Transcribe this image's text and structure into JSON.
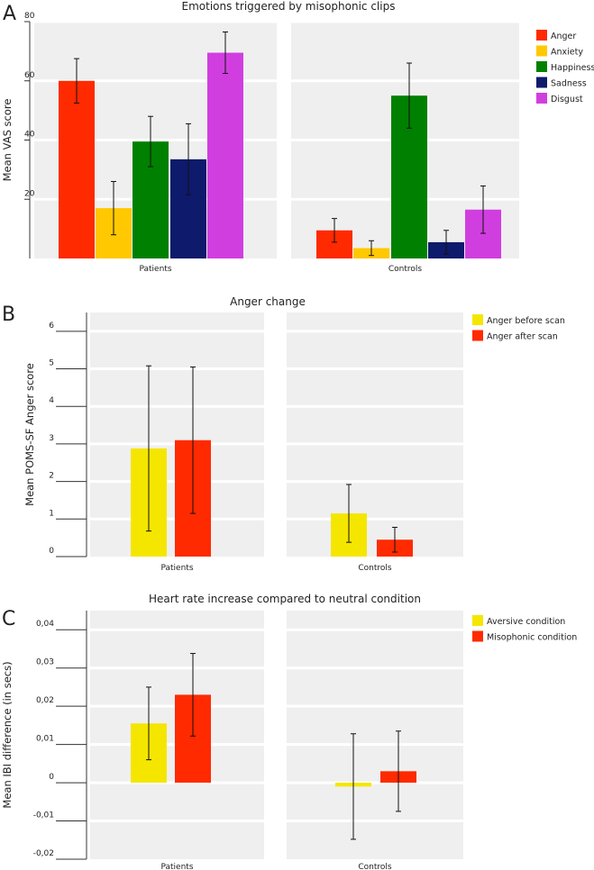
{
  "figure": {
    "panels": [
      {
        "letter": "A",
        "chart_data": {
          "type": "bar",
          "title": "Emotions triggered by misophonic clips",
          "ylabel": "Mean VAS score",
          "ylim": [
            0,
            80
          ],
          "yticks": [
            {
              "value": 20,
              "label": "20"
            },
            {
              "value": 40,
              "label": "40"
            },
            {
              "value": 60,
              "label": "60"
            },
            {
              "value": 80,
              "label": "80"
            }
          ],
          "categories": [
            "Patients",
            "Controls"
          ],
          "series": [
            {
              "name": "Anger",
              "color": "#ff2a00",
              "values": [
                60,
                9.5
              ],
              "errors": [
                7.5,
                4
              ]
            },
            {
              "name": "Anxiety",
              "color": "#ffc800",
              "values": [
                17,
                3.5
              ],
              "errors": [
                9,
                2.5
              ]
            },
            {
              "name": "Happiness",
              "color": "#008000",
              "values": [
                39.5,
                55
              ],
              "errors": [
                8.5,
                11
              ]
            },
            {
              "name": "Sadness",
              "color": "#0e1a6b",
              "values": [
                33.5,
                5.5
              ],
              "errors": [
                12,
                4
              ]
            },
            {
              "name": "Disgust",
              "color": "#d13ee0",
              "values": [
                69.5,
                16.5
              ],
              "errors": [
                7,
                8
              ]
            }
          ],
          "legend": "right"
        }
      },
      {
        "letter": "B",
        "chart_data": {
          "type": "bar",
          "title": "Anger change",
          "ylabel": "Mean POMS-SF Anger score",
          "ylim": [
            0,
            6.5
          ],
          "yticks": [
            {
              "value": 0,
              "label": "0"
            },
            {
              "value": 1,
              "label": "1"
            },
            {
              "value": 2,
              "label": "2"
            },
            {
              "value": 3,
              "label": "3"
            },
            {
              "value": 4,
              "label": "4"
            },
            {
              "value": 5,
              "label": "5"
            },
            {
              "value": 6,
              "label": "6"
            }
          ],
          "categories": [
            "Patients",
            "Controls"
          ],
          "series": [
            {
              "name": "Anger before scan",
              "color": "#f5e600",
              "values": [
                2.88,
                1.15
              ],
              "errors": [
                2.2,
                0.77
              ]
            },
            {
              "name": "Anger after scan",
              "color": "#ff2a00",
              "values": [
                3.1,
                0.45
              ],
              "errors": [
                1.95,
                0.33
              ]
            }
          ],
          "legend": "right"
        }
      },
      {
        "letter": "C",
        "chart_data": {
          "type": "bar",
          "title": "Heart rate increase compared to neutral condition",
          "ylabel": "Mean IBI difference (in secs)",
          "ylim": [
            -0.02,
            0.045
          ],
          "yticks": [
            {
              "value": -0.02,
              "label": "-0,02"
            },
            {
              "value": -0.01,
              "label": "-0,01"
            },
            {
              "value": 0,
              "label": "0"
            },
            {
              "value": 0.01,
              "label": "0,01"
            },
            {
              "value": 0.02,
              "label": "0,02"
            },
            {
              "value": 0.03,
              "label": "0,03"
            },
            {
              "value": 0.04,
              "label": "0,04"
            }
          ],
          "categories": [
            "Patients",
            "Controls"
          ],
          "series": [
            {
              "name": "Aversive condition",
              "color": "#f5e600",
              "values": [
                0.0155,
                -0.001
              ],
              "errors": [
                0.0095,
                0.0138
              ]
            },
            {
              "name": "Misophonic condition",
              "color": "#ff2a00",
              "values": [
                0.023,
                0.003
              ],
              "errors": [
                0.0108,
                0.0105
              ]
            }
          ],
          "legend": "right"
        }
      }
    ]
  }
}
